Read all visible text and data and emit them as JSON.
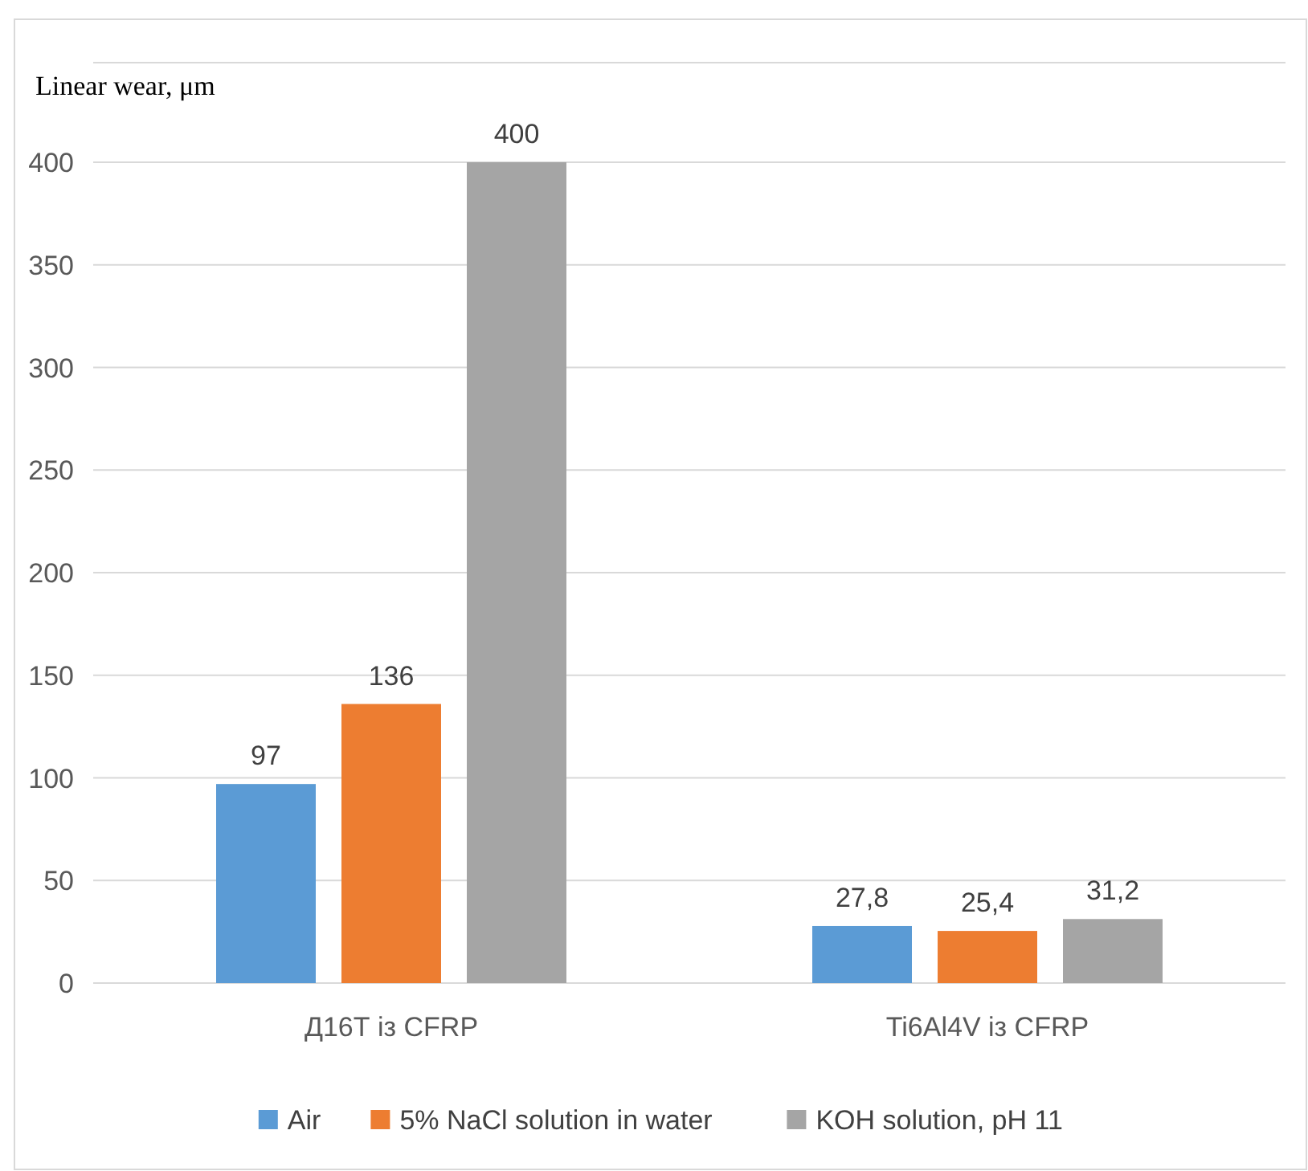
{
  "chart_data": {
    "type": "bar",
    "ylabel": "Linear wear, μm",
    "categories": [
      "Д16Т із CFRP",
      "Ti6Al4V із CFRP"
    ],
    "series": [
      {
        "name": "Air",
        "color": "#5b9bd5",
        "values": [
          97,
          27.8
        ],
        "value_labels": [
          "97",
          "27,8"
        ]
      },
      {
        "name": "5% NaCl solution in water",
        "color": "#ed7d31",
        "values": [
          136,
          25.4
        ],
        "value_labels": [
          "136",
          "25,4"
        ]
      },
      {
        "name": "KOH solution, pH 11",
        "color": "#a5a5a5",
        "values": [
          400,
          31.2
        ],
        "value_labels": [
          "400",
          "31,2"
        ]
      }
    ],
    "ylim": [
      0,
      400
    ],
    "yticks": [
      0,
      50,
      100,
      150,
      200,
      250,
      300,
      350,
      400
    ],
    "grid": "y",
    "legend": "bottom"
  }
}
